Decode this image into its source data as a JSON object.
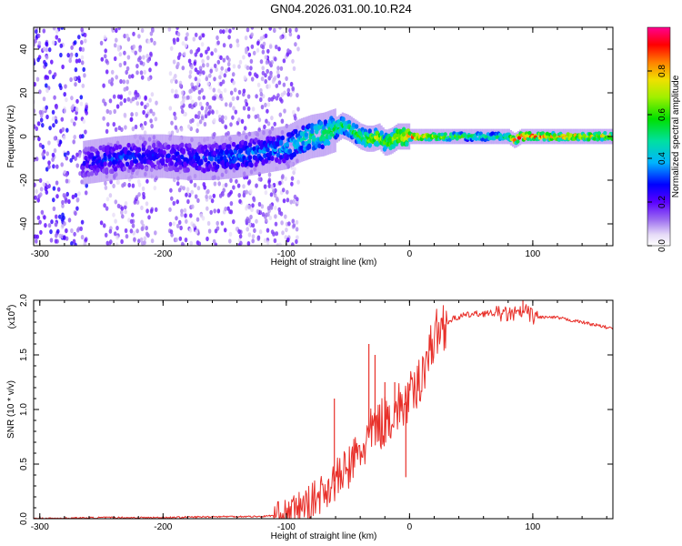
{
  "title": "GN04.2026.031.00.10.R24",
  "chart_data": [
    {
      "type": "heatmap",
      "xlabel": "Height of straight line (km)",
      "ylabel": "Frequency (Hz)",
      "xlim": [
        -305,
        165
      ],
      "ylim": [
        -50,
        50
      ],
      "xticks": [
        -300,
        -200,
        -100,
        0,
        100
      ],
      "xtick_labels": [
        "-300",
        "-200",
        "-100",
        "0",
        "100"
      ],
      "yticks": [
        -40,
        -20,
        0,
        20,
        40
      ],
      "ytick_labels": [
        "-40",
        "-20",
        "0",
        "20",
        "40"
      ],
      "colorbar": {
        "label": "Normalized spectral amplitude",
        "range": [
          0,
          1
        ],
        "ticks": [
          0.0,
          0.2,
          0.4,
          0.6,
          0.8
        ],
        "tick_labels": [
          "0.0",
          "0.2",
          "0.4",
          "0.6",
          "0.8"
        ]
      },
      "ridge": {
        "x": [
          -265,
          -240,
          -220,
          -200,
          -180,
          -160,
          -140,
          -120,
          -100,
          -90,
          -80,
          -70,
          -60,
          -55,
          -50,
          -45,
          -40,
          -35,
          -30,
          -25,
          -20,
          -15,
          -10,
          0,
          20,
          40,
          60,
          80,
          85,
          90,
          100,
          120,
          140,
          165
        ],
        "freq": [
          -12,
          -10,
          -9,
          -9,
          -10,
          -10,
          -9,
          -7,
          -5,
          -2,
          0,
          1,
          3,
          5,
          4,
          2,
          0,
          -1,
          -1,
          0,
          -3,
          -2,
          0,
          0,
          0,
          0,
          0,
          0,
          -2,
          0,
          0,
          0,
          0,
          0
        ],
        "amplitude": [
          0.25,
          0.3,
          0.3,
          0.25,
          0.3,
          0.3,
          0.35,
          0.35,
          0.4,
          0.45,
          0.5,
          0.55,
          0.6,
          0.55,
          0.5,
          0.55,
          0.6,
          0.65,
          0.7,
          0.75,
          0.6,
          0.7,
          0.8,
          0.9,
          0.75,
          0.6,
          0.5,
          0.55,
          0.9,
          0.95,
          0.9,
          0.85,
          0.8,
          0.75
        ]
      }
    },
    {
      "type": "line",
      "xlabel": "Height of straight line (km)",
      "ylabel": "SNR (10 * v/v)",
      "scale_label": "(x10",
      "scale_exponent": "4",
      "xlim": [
        -305,
        165
      ],
      "ylim": [
        0,
        2.0
      ],
      "xticks": [
        -300,
        -200,
        -100,
        0,
        100
      ],
      "xtick_labels": [
        "-300",
        "-200",
        "-100",
        "0",
        "100"
      ],
      "yticks": [
        0.0,
        0.5,
        1.0,
        1.5,
        2.0
      ],
      "ytick_labels": [
        "0.0",
        "0.5",
        "1.0",
        "1.5",
        "2.0"
      ],
      "color": "#e8302a",
      "series": [
        {
          "name": "SNR",
          "x": [
            -305,
            -250,
            -200,
            -150,
            -120,
            -100,
            -90,
            -80,
            -70,
            -60,
            -55,
            -50,
            -45,
            -40,
            -35,
            -30,
            -25,
            -20,
            -15,
            -10,
            -5,
            0,
            5,
            10,
            15,
            20,
            25,
            30,
            40,
            50,
            60,
            70,
            80,
            90,
            95,
            100,
            120,
            140,
            165
          ],
          "y": [
            0.0,
            0.01,
            0.01,
            0.02,
            0.02,
            0.04,
            0.1,
            0.15,
            0.25,
            0.35,
            0.4,
            0.45,
            0.55,
            0.6,
            0.7,
            0.8,
            0.85,
            0.9,
            0.95,
            1.0,
            1.05,
            1.1,
            1.15,
            1.35,
            1.5,
            1.65,
            1.75,
            1.8,
            1.85,
            1.87,
            1.88,
            1.88,
            1.87,
            1.88,
            1.9,
            1.85,
            1.84,
            1.8,
            1.74
          ]
        }
      ],
      "spikes": [
        {
          "x": -61,
          "y": 1.1
        },
        {
          "x": -57,
          "y": 0.45
        },
        {
          "x": -33,
          "y": 1.6
        },
        {
          "x": -28,
          "y": 1.5
        },
        {
          "x": -20,
          "y": 1.25
        },
        {
          "x": -12,
          "y": 1.25
        },
        {
          "x": -3,
          "y": 0.38
        },
        {
          "x": 92,
          "y": 2.0
        }
      ]
    }
  ]
}
